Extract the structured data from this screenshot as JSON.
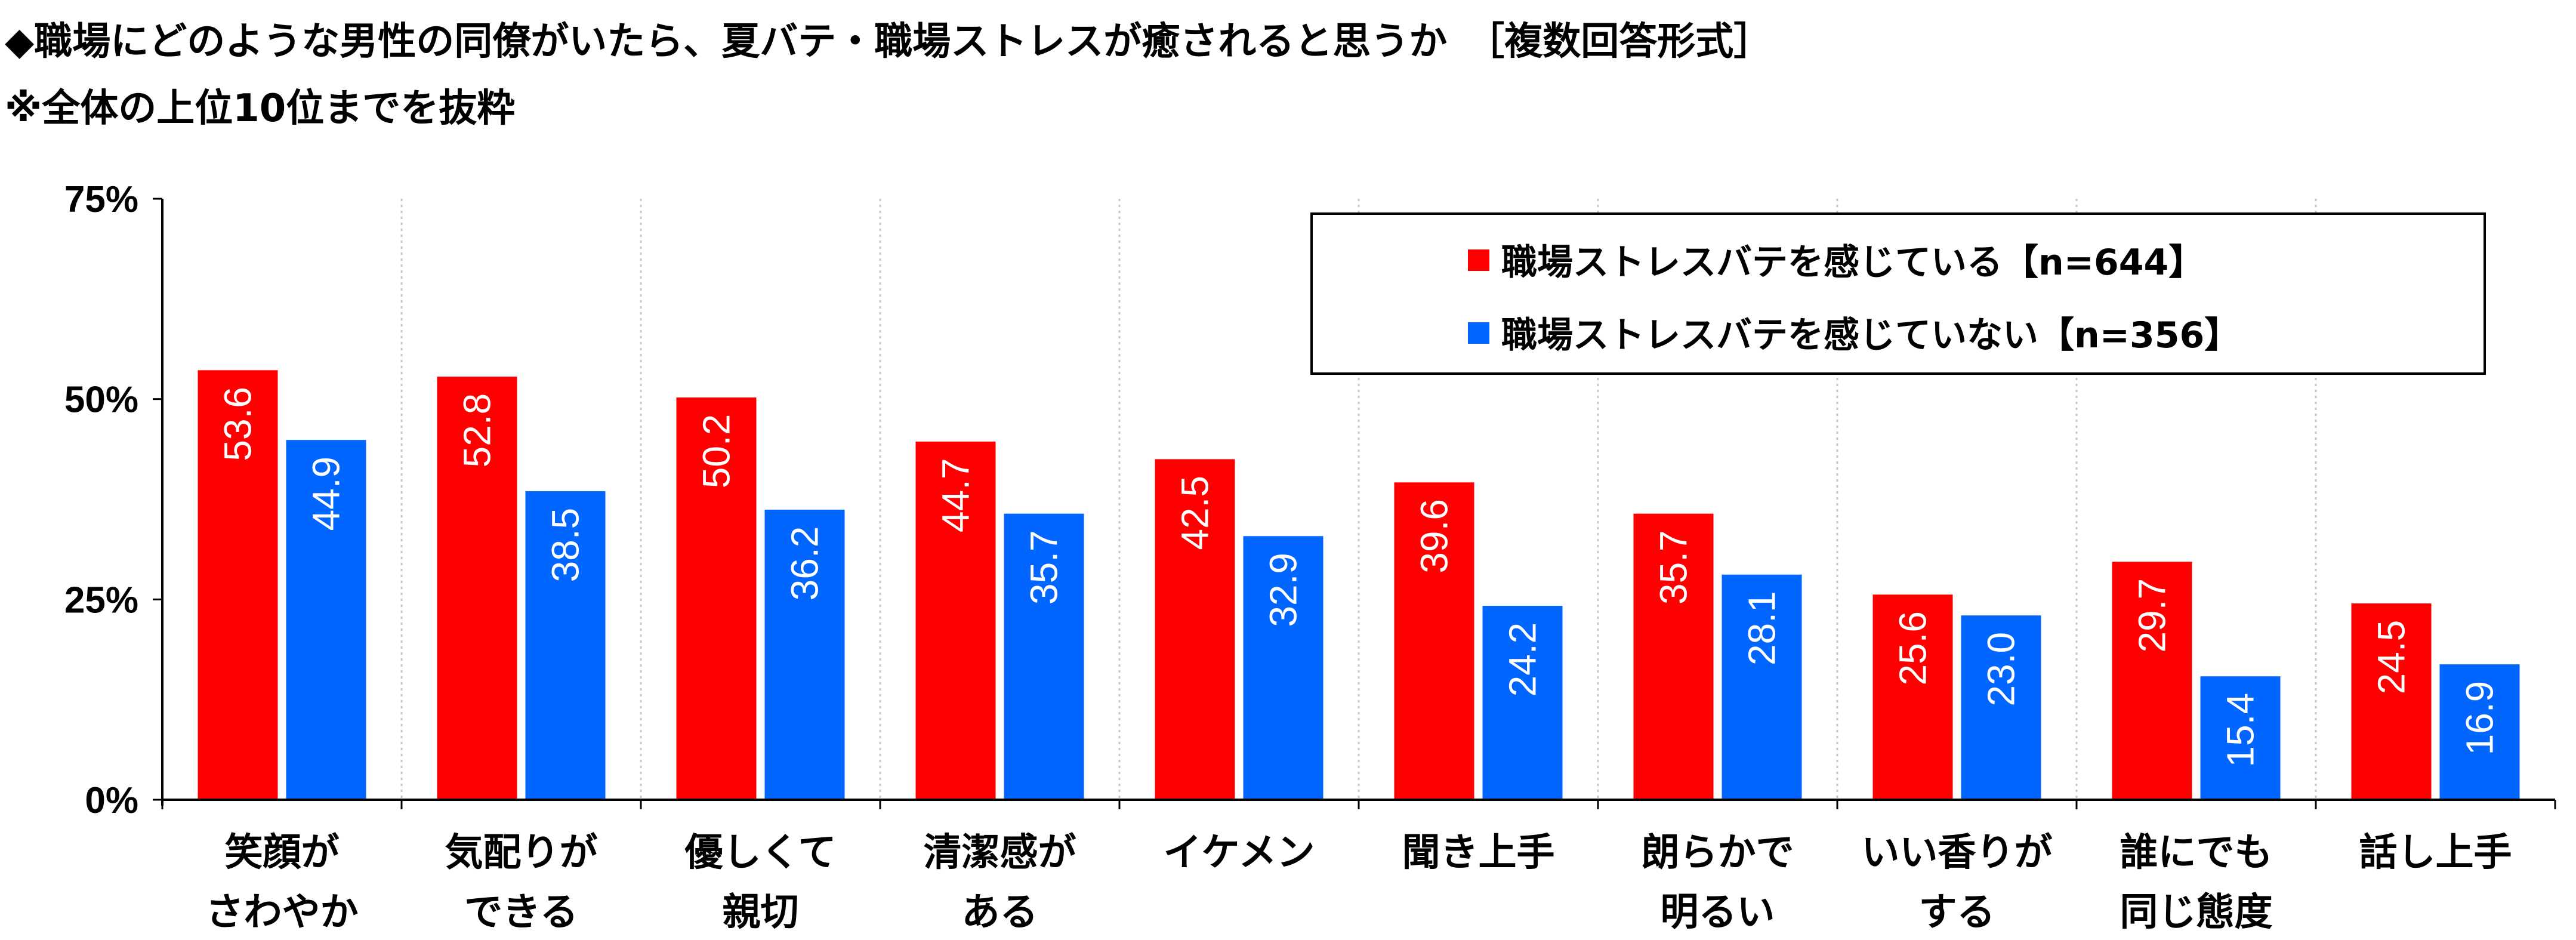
{
  "title": "◆職場にどのような男性の同僚がいたら、夏バテ・職場ストレスが癒されると思うか　［複数回答形式］",
  "subtitle": "※全体の上位10位までを抜粋",
  "colors": {
    "stressed": "#ff0000",
    "not_stressed": "#0066ff"
  },
  "chart_data": {
    "type": "bar",
    "categories": [
      [
        "笑顔が",
        "さわやか"
      ],
      [
        "気配りが",
        "できる"
      ],
      [
        "優しくて",
        "親切"
      ],
      [
        "清潔感が",
        "ある"
      ],
      [
        "イケメン"
      ],
      [
        "聞き上手"
      ],
      [
        "朗らかで",
        "明るい"
      ],
      [
        "いい香りが",
        "する"
      ],
      [
        "誰にでも",
        "同じ態度"
      ],
      [
        "話し上手"
      ]
    ],
    "series": [
      {
        "name": "職場ストレスバテを感じている【n=644】",
        "values": [
          53.6,
          52.8,
          50.2,
          44.7,
          42.5,
          39.6,
          35.7,
          25.6,
          29.7,
          24.5
        ]
      },
      {
        "name": "職場ストレスバテを感じていない【n=356】",
        "values": [
          44.9,
          38.5,
          36.2,
          35.7,
          32.9,
          24.2,
          28.1,
          23.0,
          15.4,
          16.9
        ]
      }
    ],
    "yticks": [
      "0%",
      "25%",
      "50%",
      "75%"
    ],
    "ylim": [
      0,
      75
    ],
    "grid": "vertical dotted between categories",
    "legend": "top-right"
  }
}
